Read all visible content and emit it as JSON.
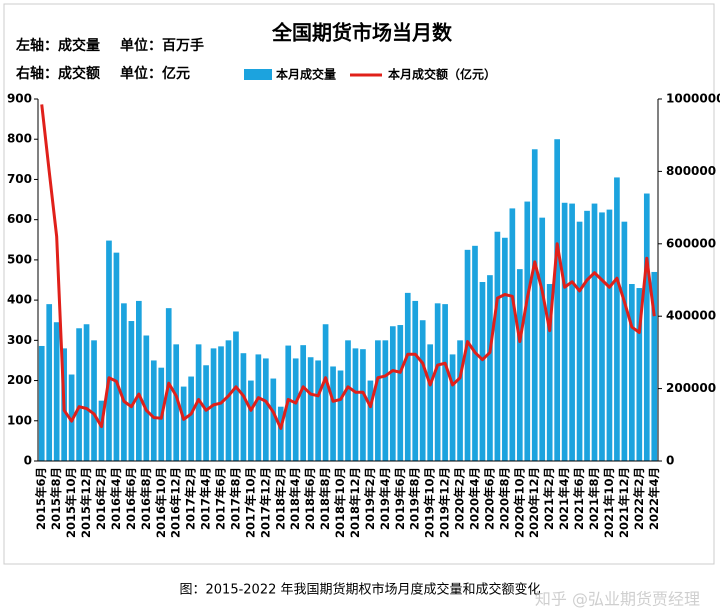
{
  "chart_data": {
    "type": "bar_line",
    "title": "全国期货市场当月数",
    "y_label": "左轴：成交量",
    "y_unit": "单位：百万手",
    "y2_label": "右轴：成交额",
    "y2_unit": "单位：亿元",
    "caption": "图：2015-2022 年我国期货期权市场月度成交量和成交额变化",
    "watermark": "知乎 @弘业期货贾经理",
    "categories": [
      "2015年6月",
      null,
      "2015年8月",
      null,
      "2015年10月",
      null,
      "2015年12月",
      null,
      "2016年2月",
      null,
      "2016年4月",
      null,
      "2016年6月",
      null,
      "2016年8月",
      null,
      "2016年10月",
      null,
      "2016年12月",
      null,
      "2017年2月",
      null,
      "2017年4月",
      null,
      "2017年6月",
      null,
      "2017年8月",
      null,
      "2017年10月",
      null,
      "2017年12月",
      null,
      "2018年2月",
      null,
      "2018年4月",
      null,
      "2018年6月",
      null,
      "2018年8月",
      null,
      "2018年10月",
      null,
      "2018年12月",
      null,
      "2019年2月",
      null,
      "2019年4月",
      null,
      "2019年6月",
      null,
      "2019年8月",
      null,
      "2019年10月",
      null,
      "2019年12月",
      null,
      "2020年2月",
      null,
      "2020年4月",
      null,
      "2020年6月",
      null,
      "2020年8月",
      null,
      "2020年10月",
      null,
      "2020年12月",
      null,
      "2021年2月",
      null,
      "2021年4月",
      null,
      "2021年6月",
      null,
      "2021年8月",
      null,
      "2021年10月",
      null,
      "2021年12月",
      null,
      "2022年2月",
      null,
      "2022年4月"
    ],
    "series": [
      {
        "name": "本月成交量",
        "color": "#1ca3de",
        "chart": "bar",
        "axis": "y",
        "values": [
          286,
          390,
          345,
          280,
          215,
          330,
          340,
          300,
          150,
          548,
          518,
          392,
          348,
          398,
          312,
          250,
          232,
          380,
          290,
          185,
          210,
          290,
          238,
          280,
          285,
          300,
          322,
          268,
          200,
          265,
          255,
          205,
          135,
          287,
          255,
          288,
          258,
          250,
          340,
          235,
          225,
          300,
          280,
          278,
          200,
          300,
          300,
          335,
          338,
          418,
          398,
          350,
          290,
          392,
          390,
          265,
          300,
          525,
          535,
          445,
          462,
          570,
          555,
          628,
          477,
          645,
          775,
          605,
          440,
          800,
          642,
          640,
          595,
          622,
          640,
          618,
          625,
          705,
          595,
          440,
          430,
          665,
          470
        ]
      },
      {
        "name": "本月成交额（亿元）",
        "color": "#e0201a",
        "chart": "line",
        "axis": "y2",
        "values": [
          985000,
          800000,
          620000,
          140000,
          110000,
          150000,
          145000,
          130000,
          95000,
          230000,
          220000,
          165000,
          150000,
          185000,
          140000,
          120000,
          118000,
          215000,
          180000,
          115000,
          130000,
          170000,
          140000,
          155000,
          160000,
          180000,
          205000,
          180000,
          140000,
          175000,
          165000,
          135000,
          90000,
          170000,
          160000,
          205000,
          185000,
          180000,
          230000,
          165000,
          170000,
          205000,
          190000,
          190000,
          150000,
          230000,
          235000,
          250000,
          245000,
          295000,
          295000,
          270000,
          210000,
          265000,
          270000,
          210000,
          230000,
          330000,
          300000,
          280000,
          300000,
          450000,
          460000,
          455000,
          330000,
          450000,
          550000,
          470000,
          360000,
          600000,
          480000,
          495000,
          470000,
          500000,
          520000,
          500000,
          480000,
          505000,
          440000,
          370000,
          355000,
          560000,
          400000
        ]
      }
    ],
    "ylim": [
      0,
      900
    ],
    "yticks": [
      0,
      100,
      200,
      300,
      400,
      500,
      600,
      700,
      800,
      900
    ],
    "y2lim": [
      0,
      1000000
    ],
    "y2ticks": [
      0,
      200000,
      400000,
      600000,
      800000,
      1000000
    ],
    "grid": false
  }
}
